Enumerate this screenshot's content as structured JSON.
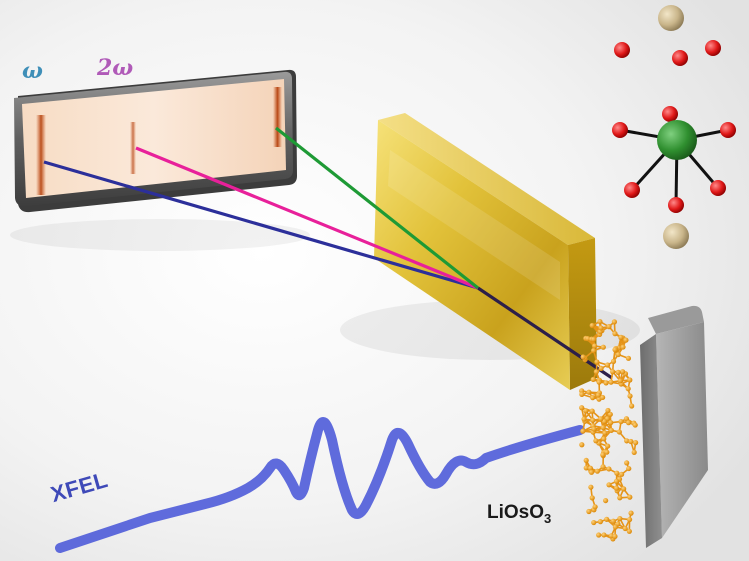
{
  "labels": {
    "omega": "ω",
    "two_omega": "2ω",
    "xfel": "XFEL",
    "sample_base": "LiOsO",
    "sample_sub": "3"
  },
  "colors": {
    "fundamental_beam": "#2c2f9a",
    "second_harmonic_beam": "#e8209a",
    "green_beam": "#1e9a35",
    "xfel_beam": "#4a58d8",
    "crystal": "#e0be2e",
    "detector_frame": "#6e6e6e",
    "sample_block": "#808080",
    "nanostructure": "#f0a020",
    "osmium_atom": "#2f8f2f",
    "oxygen_atom": "#e01818",
    "lithium_atom": "#c9b58a",
    "omega_label": "#3f8fb8",
    "two_omega_label": "#b05ab8"
  },
  "icons": {
    "molecule": "LiOsO3 unit cell model",
    "detector": "spectrometer detector screen",
    "crystal": "analyzer crystal",
    "sample": "sample slab"
  }
}
